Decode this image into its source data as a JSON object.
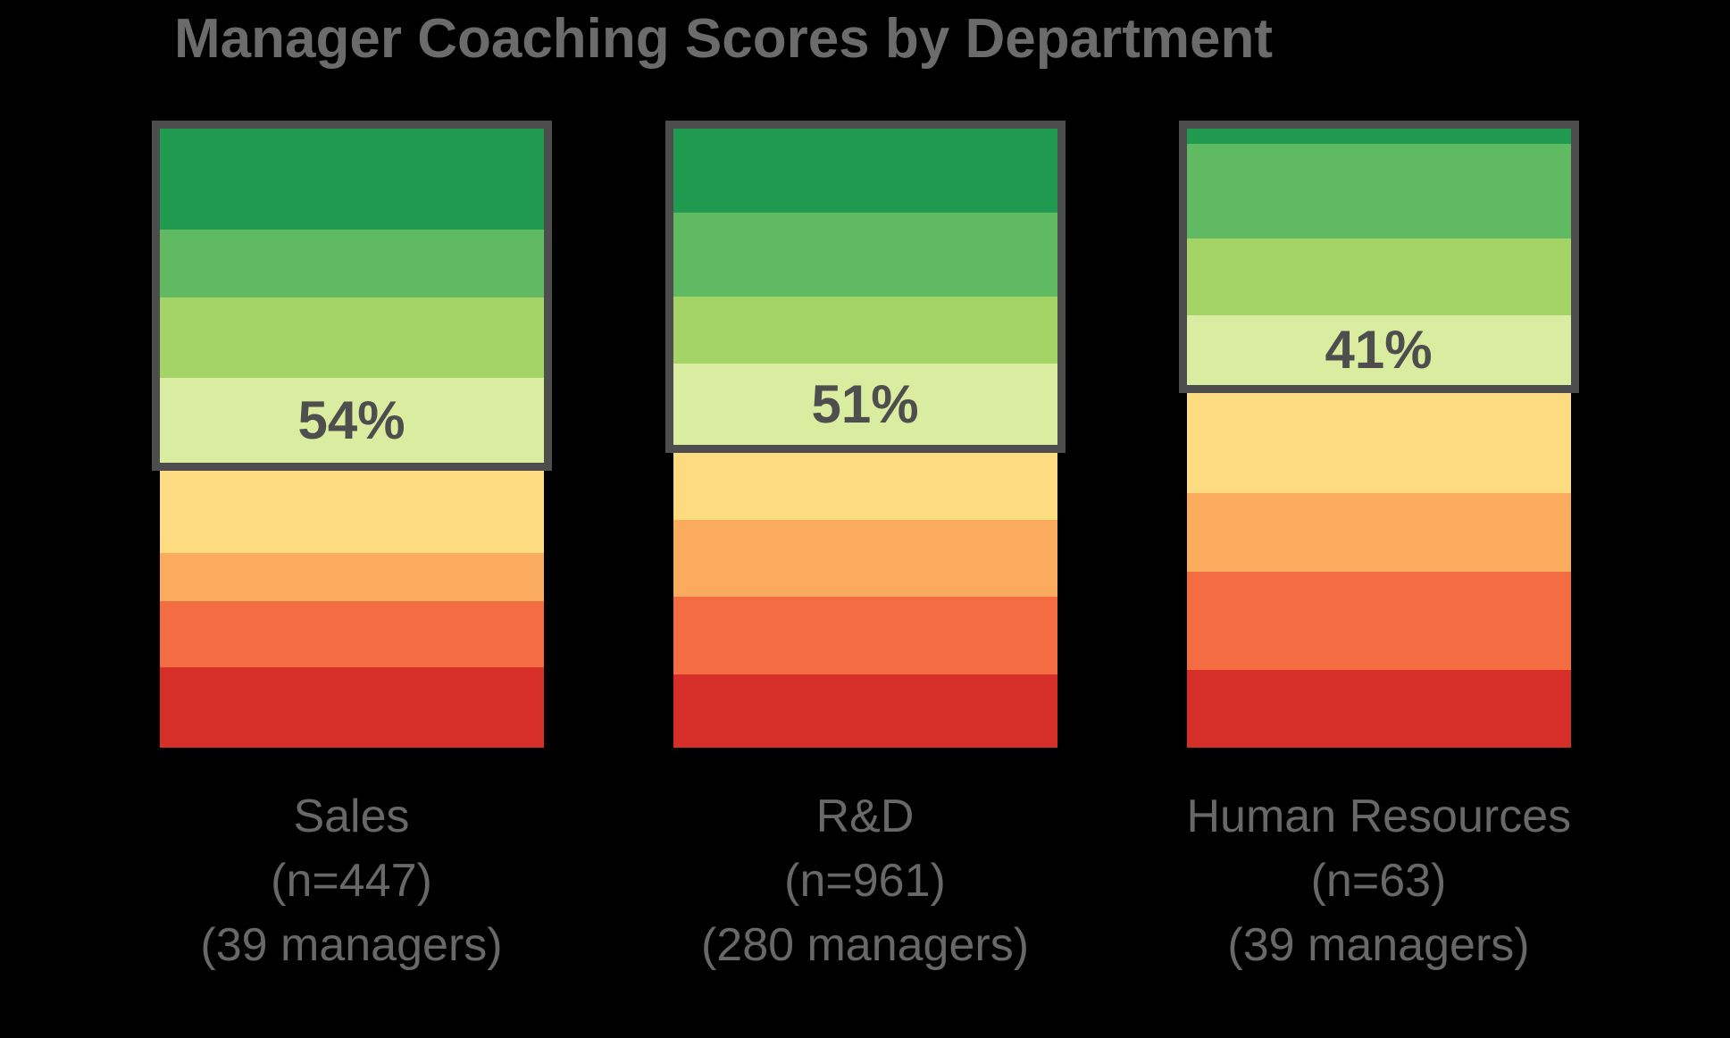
{
  "title": "Manager Coaching Scores by Department",
  "colors": {
    "background": "#000000",
    "title_text": "#6b6b6b",
    "dept_label_text": "#686868",
    "percent_text": "#4e4e4e",
    "highlight_box_border": "#4d4d4d",
    "segment_colors": [
      "#1f9a4f",
      "#60ba62",
      "#a5d466",
      "#daeca0",
      "#fddc81",
      "#fbab5e",
      "#f36c42",
      "#d52f27"
    ]
  },
  "chart_data": {
    "type": "bar",
    "subtype": "stacked-100pct",
    "title": "Manager Coaching Scores by Department",
    "legend": "none",
    "axes_visible": false,
    "grid": false,
    "segment_names": [
      "green-1",
      "green-2",
      "green-3",
      "green-4",
      "yellow",
      "orange",
      "dark-orange",
      "red"
    ],
    "segment_colors": [
      "#1f9a4f",
      "#60ba62",
      "#a5d466",
      "#daeca0",
      "#fddc81",
      "#fbab5e",
      "#f36c42",
      "#d52f27"
    ],
    "categories": [
      "Sales",
      "R&D",
      "Human Resources"
    ],
    "highlighted_green_totals_pct": [
      54,
      51,
      41
    ],
    "series": [
      {
        "name": "Sales",
        "n_line": "(n=447)",
        "managers_line": "(39 managers)",
        "green_total_label": "54%",
        "segments_pct": [
          16.3,
          11.0,
          13.0,
          13.7,
          14.6,
          7.8,
          10.7,
          13.0
        ]
      },
      {
        "name": "R&D",
        "n_line": "(n=961)",
        "managers_line": "(280 managers)",
        "green_total_label": "51%",
        "segments_pct": [
          13.6,
          13.6,
          10.8,
          13.1,
          12.1,
          12.4,
          12.6,
          11.8
        ]
      },
      {
        "name": "Human Resources",
        "n_line": "(n=63)",
        "managers_line": "(39 managers)",
        "green_total_label": "41%",
        "segments_pct": [
          2.5,
          15.3,
          12.4,
          11.3,
          17.5,
          12.7,
          15.9,
          12.6
        ]
      }
    ]
  }
}
